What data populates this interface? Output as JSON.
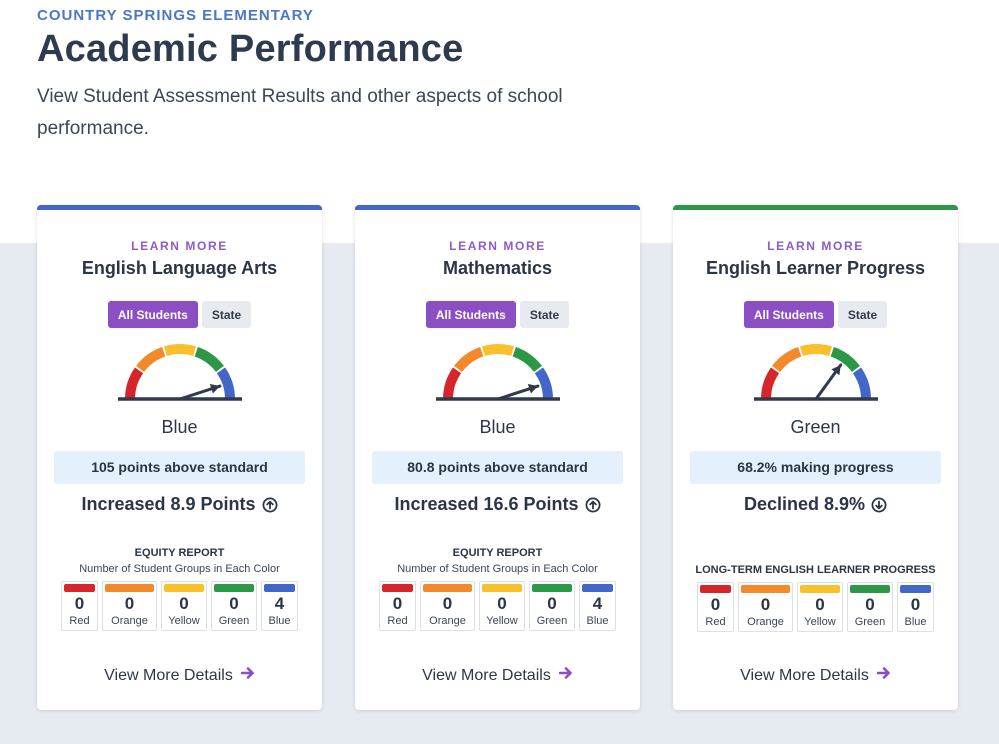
{
  "header": {
    "school": "COUNTRY SPRINGS ELEMENTARY",
    "title": "Academic Performance",
    "subtitle": "View Student Assessment Results and other aspects of school performance."
  },
  "colors": {
    "red": "#d7262b",
    "orange": "#f28a2c",
    "yellow": "#f8c02a",
    "green": "#2b9747",
    "blue": "#4267c9",
    "purple": "#8b4fc3"
  },
  "cards": [
    {
      "learn_more": "LEARN MORE",
      "title": "English Language Arts",
      "toggle_all": "All Students",
      "toggle_state": "State",
      "color_name": "Blue",
      "top_border_color": "#4267c9",
      "gauge_value": 0.9,
      "stat": "105 points above standard",
      "change": "Increased 8.9 Points",
      "change_icon": "arrow-up-circle-icon",
      "equity_title": "EQUITY REPORT",
      "equity_subtitle": "Number of Student Groups in Each Color",
      "swatches": [
        {
          "label": "Red",
          "count": "0"
        },
        {
          "label": "Orange",
          "count": "0"
        },
        {
          "label": "Yellow",
          "count": "0"
        },
        {
          "label": "Green",
          "count": "0"
        },
        {
          "label": "Blue",
          "count": "4"
        }
      ],
      "view_more": "View More Details"
    },
    {
      "learn_more": "LEARN MORE",
      "title": "Mathematics",
      "toggle_all": "All Students",
      "toggle_state": "State",
      "color_name": "Blue",
      "top_border_color": "#4267c9",
      "gauge_value": 0.9,
      "stat": "80.8 points above standard",
      "change": "Increased 16.6 Points",
      "change_icon": "arrow-up-circle-icon",
      "equity_title": "EQUITY REPORT",
      "equity_subtitle": "Number of Student Groups in Each Color",
      "swatches": [
        {
          "label": "Red",
          "count": "0"
        },
        {
          "label": "Orange",
          "count": "0"
        },
        {
          "label": "Yellow",
          "count": "0"
        },
        {
          "label": "Green",
          "count": "0"
        },
        {
          "label": "Blue",
          "count": "4"
        }
      ],
      "view_more": "View More Details"
    },
    {
      "learn_more": "LEARN MORE",
      "title": "English Learner Progress",
      "toggle_all": "All Students",
      "toggle_state": "State",
      "color_name": "Green",
      "top_border_color": "#2b9747",
      "gauge_value": 0.7,
      "stat": "68.2% making progress",
      "change": "Declined 8.9%",
      "change_icon": "arrow-down-circle-icon",
      "equity_title": "LONG-TERM ENGLISH LEARNER PROGRESS",
      "equity_subtitle": "",
      "swatches": [
        {
          "label": "Red",
          "count": "0"
        },
        {
          "label": "Orange",
          "count": "0"
        },
        {
          "label": "Yellow",
          "count": "0"
        },
        {
          "label": "Green",
          "count": "0"
        },
        {
          "label": "Blue",
          "count": "0"
        }
      ],
      "view_more": "View More Details"
    }
  ]
}
